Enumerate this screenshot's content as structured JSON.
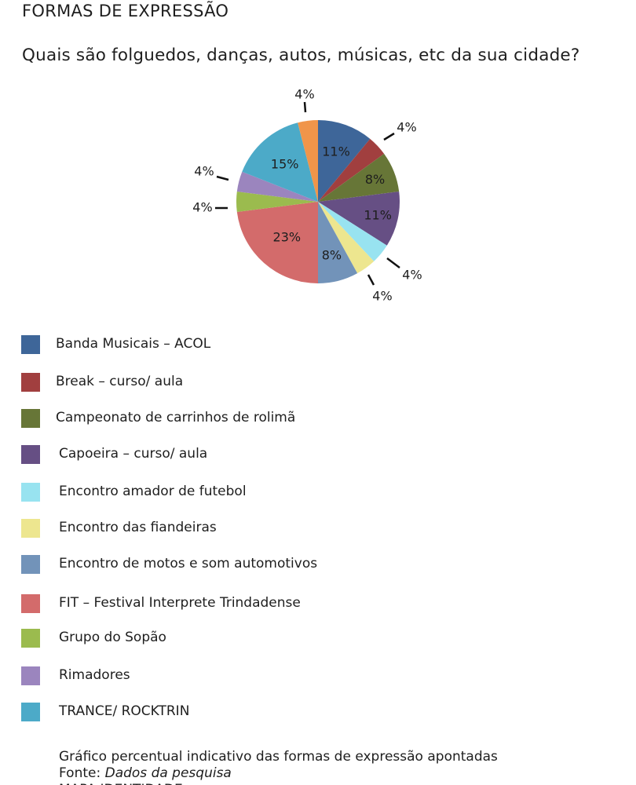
{
  "header": {
    "title": "FORMAS DE EXPRESSÃO"
  },
  "question": "Quais são folguedos, danças, autos, músicas, etc da sua cidade?",
  "chart_data": {
    "type": "pie",
    "start_angle_deg": 0,
    "direction": "clockwise",
    "slices": [
      {
        "label": "Banda Musicais – ACOL",
        "value": 11,
        "display": "11%",
        "color": "#3e6699"
      },
      {
        "label": "Break – curso/ aula",
        "value": 4,
        "display": "4%",
        "color": "#a13f3f"
      },
      {
        "label": "Campeonato de carrinhos de rolimã",
        "value": 8,
        "display": "8%",
        "color": "#677637"
      },
      {
        "label": "Capoeira – curso/ aula",
        "value": 11,
        "display": "11%",
        "color": "#664f84"
      },
      {
        "label": "Encontro amador de futebol",
        "value": 4,
        "display": "4%",
        "color": "#98e3f0"
      },
      {
        "label": "Encontro das fiandeiras",
        "value": 4,
        "display": "4%",
        "color": "#ede68f"
      },
      {
        "label": "Encontro de motos e som automotivos",
        "value": 8,
        "display": "8%",
        "color": "#7293b9"
      },
      {
        "label": "FIT – Festival Interprete Trindadense",
        "value": 23,
        "display": "23%",
        "color": "#d36b6b"
      },
      {
        "label": "Grupo do Sopão",
        "value": 4,
        "display": "4%",
        "color": "#9bbb4e"
      },
      {
        "label": "Rimadores",
        "value": 4,
        "display": "4%",
        "color": "#9b85be"
      },
      {
        "label": "TRANCE/ ROCKTRIN",
        "value": 15,
        "display": "15%",
        "color": "#4caac8"
      },
      {
        "label": "",
        "value": 4,
        "display": "4%",
        "color": "#f0954a"
      }
    ],
    "label_color": "#1e1e1e",
    "legend_position": "below"
  },
  "caption": {
    "line1": "Gráfico percentual indicativo das formas de expressão apontadas",
    "source_prefix": "Fonte: ",
    "source": "Dados da pesquisa",
    "line3": "MAPA IDENTIDADE"
  }
}
